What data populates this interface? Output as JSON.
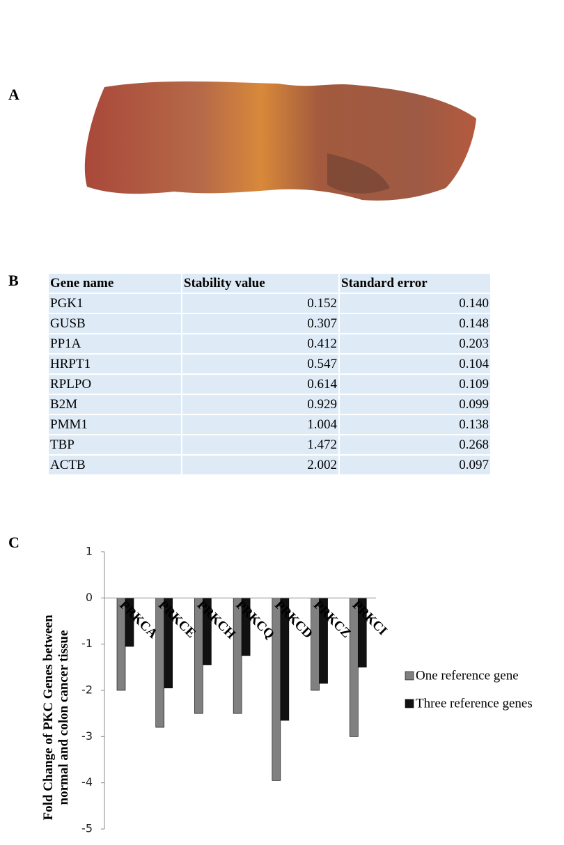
{
  "panels": [
    "A",
    "B",
    "C"
  ],
  "table": {
    "header": [
      "Gene name",
      "Stability value",
      "Standard error"
    ],
    "rows": [
      [
        "PGK1",
        "0.152",
        "0.140"
      ],
      [
        "GUSB",
        "0.307",
        "0.148"
      ],
      [
        "PP1A",
        "0.412",
        "0.203"
      ],
      [
        "HRPT1",
        "0.547",
        "0.104"
      ],
      [
        "RPLPO",
        "0.614",
        "0.109"
      ],
      [
        "B2M",
        "0.929",
        "0.099"
      ],
      [
        "PMM1",
        "1.004",
        "0.138"
      ],
      [
        "TBP",
        "1.472",
        "0.268"
      ],
      [
        "ACTB",
        "2.002",
        "0.097"
      ]
    ]
  },
  "chart_data": {
    "type": "bar",
    "ylabel": [
      "Fold Change of PKC Genes between",
      "normal and colon cancer tissue"
    ],
    "categories": [
      "PRKCA",
      "PRKCE",
      "PRKCH",
      "PRKCQ",
      "PRKCD",
      "PRKCZ",
      "PRKCI"
    ],
    "series": [
      {
        "name": "One reference gene",
        "color": "#808080",
        "values": [
          -2.0,
          -2.8,
          -2.5,
          -2.5,
          -3.95,
          -2.0,
          -3.0
        ]
      },
      {
        "name": "Three reference genes",
        "color": "#111111",
        "values": [
          -1.05,
          -1.95,
          -1.45,
          -1.25,
          -2.65,
          -1.85,
          -1.5
        ]
      }
    ],
    "ylim": [
      -5,
      1
    ],
    "yticks": [
      -5,
      -4,
      -3,
      -2,
      -1,
      0,
      1
    ],
    "legend": "right"
  }
}
